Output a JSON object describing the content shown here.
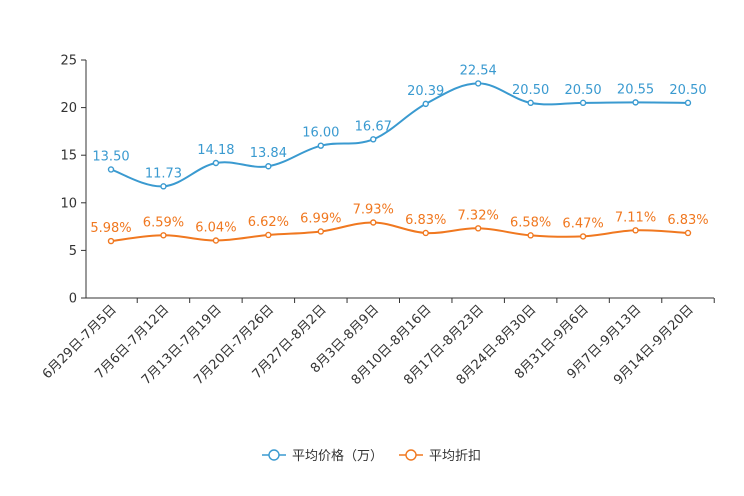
{
  "chart_data": {
    "type": "line",
    "title": "",
    "xlabel": "",
    "ylabel": "",
    "ylim": [
      0,
      25
    ],
    "yticks": [
      0,
      5,
      10,
      15,
      20,
      25
    ],
    "categories": [
      "6月29日-7月5日",
      "7月6日-7月12日",
      "7月13日-7月19日",
      "7月20日-7月26日",
      "7月27日-8月2日",
      "8月3日-8月9日",
      "8月10日-8月16日",
      "8月17日-8月23日",
      "8月24日-8月30日",
      "8月31日-9月6日",
      "9月7日-9月13日",
      "9月14日-9月20日"
    ],
    "legend_position": "bottom",
    "series": [
      {
        "name": "平均价格（万）",
        "color": "#3a9ad0",
        "values": [
          13.5,
          11.73,
          14.18,
          13.84,
          16.0,
          16.67,
          20.39,
          22.54,
          20.5,
          20.5,
          20.55,
          20.5
        ],
        "labels": [
          "13.50",
          "11.73",
          "14.18",
          "13.84",
          "16.00",
          "16.67",
          "20.39",
          "22.54",
          "20.50",
          "20.50",
          "20.55",
          "20.50"
        ]
      },
      {
        "name": "平均折扣",
        "color": "#f07820",
        "values": [
          5.98,
          6.59,
          6.04,
          6.62,
          6.99,
          7.93,
          6.83,
          7.32,
          6.58,
          6.47,
          7.11,
          6.83
        ],
        "labels": [
          "5.98%",
          "6.59%",
          "6.04%",
          "6.62%",
          "6.99%",
          "7.93%",
          "6.83%",
          "7.32%",
          "6.58%",
          "6.47%",
          "7.11%",
          "6.83%"
        ]
      }
    ]
  }
}
